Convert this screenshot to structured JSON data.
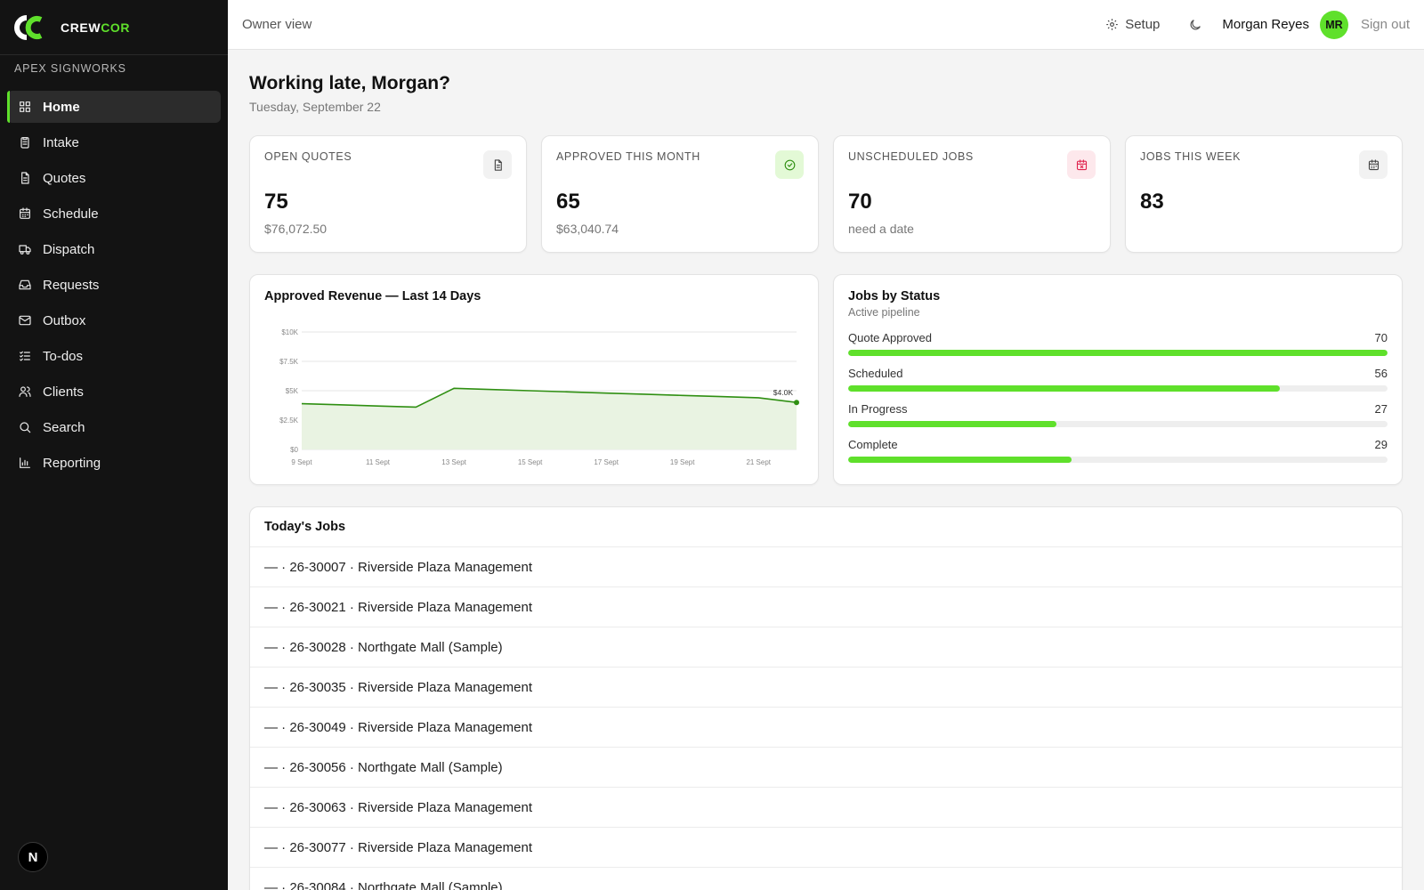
{
  "brand": {
    "name_part1": "CREW",
    "name_part2": "COR"
  },
  "org": "APEX SIGNWORKS",
  "sidebar": {
    "items": [
      {
        "label": "Home",
        "icon": "grid-icon"
      },
      {
        "label": "Intake",
        "icon": "clipboard-icon"
      },
      {
        "label": "Quotes",
        "icon": "document-icon"
      },
      {
        "label": "Schedule",
        "icon": "calendar-icon"
      },
      {
        "label": "Dispatch",
        "icon": "truck-icon"
      },
      {
        "label": "Requests",
        "icon": "inbox-icon"
      },
      {
        "label": "Outbox",
        "icon": "mail-icon"
      },
      {
        "label": "To-dos",
        "icon": "checklist-icon"
      },
      {
        "label": "Clients",
        "icon": "users-icon"
      },
      {
        "label": "Search",
        "icon": "search-icon"
      },
      {
        "label": "Reporting",
        "icon": "bar-chart-icon"
      }
    ],
    "active": "Home",
    "footer_badge": "N"
  },
  "topbar": {
    "view_label": "Owner view",
    "setup_label": "Setup",
    "user_name": "Morgan Reyes",
    "avatar_initials": "MR",
    "signout_label": "Sign out"
  },
  "header": {
    "greeting": "Working late, Morgan?",
    "date": "Tuesday, September 22"
  },
  "cards": [
    {
      "label": "OPEN QUOTES",
      "value": "75",
      "sub": "$76,072.50",
      "icon": "document-icon",
      "icon_bg": "#f2f2f2",
      "icon_color": "#444444"
    },
    {
      "label": "APPROVED THIS MONTH",
      "value": "65",
      "sub": "$63,040.74",
      "icon": "check-circle-icon",
      "icon_bg": "#e3f9d6",
      "icon_color": "#2f8f12"
    },
    {
      "label": "UNSCHEDULED JOBS",
      "value": "70",
      "sub": "need a date",
      "icon": "calendar-x-icon",
      "icon_bg": "#fde8ec",
      "icon_color": "#e0234e"
    },
    {
      "label": "JOBS THIS WEEK",
      "value": "83",
      "sub": "",
      "icon": "calendar-icon",
      "icon_bg": "#f2f2f2",
      "icon_color": "#444444"
    }
  ],
  "revenue_panel": {
    "title": "Approved Revenue — Last 14 Days"
  },
  "chart_data": {
    "type": "area",
    "title": "Approved Revenue — Last 14 Days",
    "x": [
      "9 Sept",
      "10 Sept",
      "11 Sept",
      "12 Sept",
      "13 Sept",
      "14 Sept",
      "15 Sept",
      "16 Sept",
      "17 Sept",
      "18 Sept",
      "19 Sept",
      "20 Sept",
      "21 Sept",
      "22 Sept"
    ],
    "x_tick_labels": [
      "9 Sept",
      "11 Sept",
      "13 Sept",
      "15 Sept",
      "17 Sept",
      "19 Sept",
      "21 Sept"
    ],
    "values": [
      3900,
      3800,
      3700,
      3600,
      5200,
      5100,
      5000,
      4900,
      4800,
      4700,
      4600,
      4500,
      4400,
      4000
    ],
    "y_ticks": [
      "$0",
      "$2.5K",
      "$5K",
      "$7.5K",
      "$10K"
    ],
    "ylim": [
      0,
      10000
    ],
    "last_point_label": "$4.0K",
    "grid": true,
    "line_color": "#2f8f12",
    "fill_color": "#e9f3e2"
  },
  "status_panel": {
    "title": "Jobs by Status",
    "subtitle": "Active pipeline",
    "max": 70,
    "rows": [
      {
        "label": "Quote Approved",
        "value": 70,
        "fraction": 1.0
      },
      {
        "label": "Scheduled",
        "value": 56,
        "fraction": 0.8
      },
      {
        "label": "In Progress",
        "value": 27,
        "fraction": 0.386
      },
      {
        "label": "Complete",
        "value": 29,
        "fraction": 0.414
      }
    ],
    "bar_color": "#5fe02b"
  },
  "jobs_panel": {
    "title": "Today's Jobs",
    "rows": [
      "— · 26-30007 · Riverside Plaza Management",
      "— · 26-30021 · Riverside Plaza Management",
      "— · 26-30028 · Northgate Mall (Sample)",
      "— · 26-30035 · Riverside Plaza Management",
      "— · 26-30049 · Riverside Plaza Management",
      "— · 26-30056 · Northgate Mall (Sample)",
      "— · 26-30063 · Riverside Plaza Management",
      "— · 26-30077 · Riverside Plaza Management",
      "— · 26-30084 · Northgate Mall (Sample)"
    ]
  }
}
